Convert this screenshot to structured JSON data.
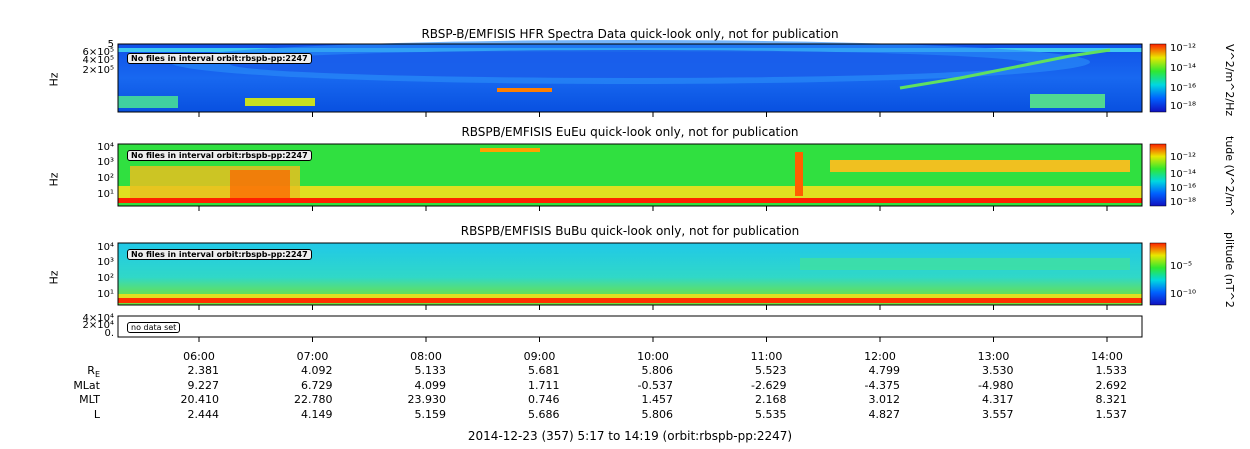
{
  "panels": [
    {
      "title": "RBSP-B/EMFISIS  HFR Spectra Data quick-look only, not for publication",
      "ylabel": "Hz",
      "yticks": [
        "5",
        "6×10⁵",
        "4×10⁵",
        "2×10⁵"
      ],
      "badge": "No files in interval orbit:rbspb-pp:2247",
      "colorbar_title": "V^2/m^2/Hz",
      "colorbar_ticks": [
        "10⁻¹²",
        "10⁻¹⁴",
        "10⁻¹⁶",
        "10⁻¹⁸"
      ]
    },
    {
      "title": "RBSPB/EMFISIS  EuEu quick-look only, not for publication",
      "ylabel": "Hz",
      "yticks": [
        "10⁴",
        "10³",
        "10²",
        "10¹"
      ],
      "badge": "No files in interval orbit:rbspb-pp:2247",
      "colorbar_title": "tude (V^2/m^",
      "colorbar_ticks": [
        "10⁻¹²",
        "10⁻¹⁴",
        "10⁻¹⁶",
        "10⁻¹⁸"
      ]
    },
    {
      "title": "RBSPB/EMFISIS  BuBu quick-look only, not for publication",
      "ylabel": "Hz",
      "yticks": [
        "10⁴",
        "10³",
        "10²",
        "10¹"
      ],
      "badge": "No files in interval orbit:rbspb-pp:2247",
      "colorbar_title": "plitude (nT^2",
      "colorbar_ticks": [
        "10⁻⁵",
        "10⁻¹⁰"
      ]
    },
    {
      "title": "",
      "ylabel": "",
      "yticks": [
        "4×10⁴",
        "2×10⁴",
        "0."
      ],
      "badge": "no data set"
    }
  ],
  "chart_data": {
    "type": "heatmap",
    "x_axis": {
      "type": "time",
      "tick_labels": [
        "06:00",
        "07:00",
        "08:00",
        "09:00",
        "10:00",
        "11:00",
        "12:00",
        "13:00",
        "14:00"
      ],
      "range": [
        "05:17",
        "14:19"
      ]
    },
    "ephemeris": {
      "rows": [
        {
          "label": "R",
          "sub": "E",
          "values": [
            "2.381",
            "4.092",
            "5.133",
            "5.681",
            "5.806",
            "5.523",
            "4.799",
            "3.530",
            "1.533"
          ]
        },
        {
          "label": "MLat",
          "values": [
            "9.227",
            "6.729",
            "4.099",
            "1.711",
            "-0.537",
            "-2.629",
            "-4.375",
            "-4.980",
            "2.692"
          ]
        },
        {
          "label": "MLT",
          "values": [
            "20.410",
            "22.780",
            "23.930",
            "0.746",
            "1.457",
            "2.168",
            "3.012",
            "4.317",
            "8.321"
          ]
        },
        {
          "label": "L",
          "values": [
            "2.444",
            "4.149",
            "5.159",
            "5.686",
            "5.806",
            "5.535",
            "4.827",
            "3.557",
            "1.537"
          ]
        }
      ]
    },
    "footer": "2014-12-23 (357) 5:17 to 14:19 (orbit:rbspb-pp:2247)"
  }
}
